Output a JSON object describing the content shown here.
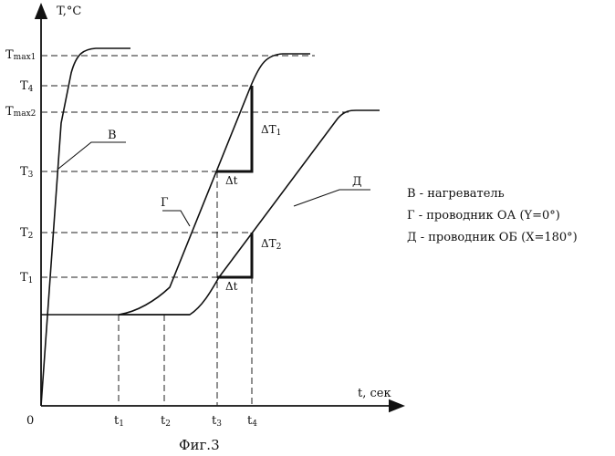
{
  "axes": {
    "y_label": "T,°C",
    "x_label": "t, сек",
    "origin": "0"
  },
  "y_ticks": {
    "tmax1": {
      "base": "T",
      "sub": "max1"
    },
    "t4": {
      "base": "T",
      "sub": "4"
    },
    "tmax2": {
      "base": "T",
      "sub": "max2"
    },
    "t3": {
      "base": "T",
      "sub": "3"
    },
    "t2": {
      "base": "T",
      "sub": "2"
    },
    "t1": {
      "base": "T",
      "sub": "1"
    }
  },
  "x_ticks": {
    "t1": {
      "base": "t",
      "sub": "1"
    },
    "t2": {
      "base": "t",
      "sub": "2"
    },
    "t3": {
      "base": "t",
      "sub": "3"
    },
    "t4": {
      "base": "t",
      "sub": "4"
    }
  },
  "curve_labels": {
    "v": "В",
    "g": "Г",
    "d": "Д"
  },
  "annotations": {
    "dt_upper": "Δt",
    "dt_lower": "Δt",
    "dT1": {
      "base": "ΔT",
      "sub": "1"
    },
    "dT2": {
      "base": "ΔT",
      "sub": "2"
    }
  },
  "legend": [
    "В - нагреватель",
    "Г - проводник ОА (Y=0°)",
    "Д - проводник ОБ (Х=180°)"
  ],
  "caption": "Фиг.3"
}
